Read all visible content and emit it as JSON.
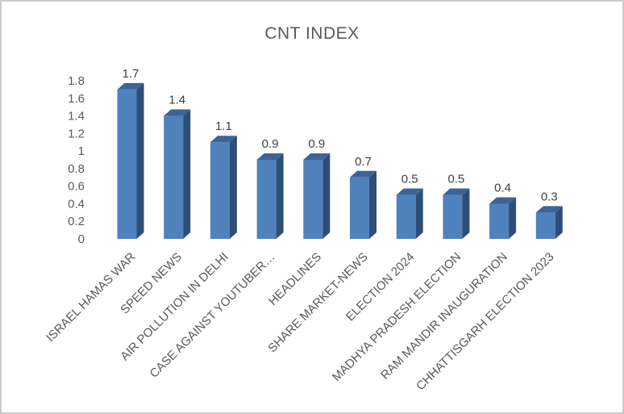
{
  "chart_data": {
    "type": "bar",
    "style": "3d-column",
    "title": "CNT INDEX",
    "categories": [
      "ISRAEL HAMAS WAR",
      "SPEED NEWS",
      "AIR POLLUTION IN DELHI",
      "CASE AGAINST YOUTUBER…",
      "HEADLINES",
      "SHARE MARKET-NEWS",
      "ELECTION 2024",
      "MADHYA PRADESH ELECTION",
      "RAM MANDIR INAUGURATION",
      "CHHATTISGARH ELECTION 2023"
    ],
    "values": [
      1.7,
      1.4,
      1.1,
      0.9,
      0.9,
      0.7,
      0.5,
      0.5,
      0.4,
      0.3
    ],
    "data_labels": [
      "1.7",
      "1.4",
      "1.1",
      "0.9",
      "0.9",
      "0.7",
      "0.5",
      "0.5",
      "0.4",
      "0.3"
    ],
    "xlabel": "",
    "ylabel": "",
    "ylim": [
      0,
      1.8
    ],
    "ytick_step": 0.2,
    "yticks": [
      "1.8",
      "1.6",
      "1.4",
      "1.2",
      "1",
      "0.8",
      "0.6",
      "0.4",
      "0.2",
      "0"
    ],
    "grid": false,
    "legend": "none",
    "x_label_rotation_deg": -45,
    "colors": {
      "bar_front": "#4F81BD",
      "bar_side": "#2F4E77",
      "bar_top": "#3C6498",
      "title_text": "#595959",
      "axis_text": "#595959",
      "data_label_text": "#404040",
      "background": "#FFFFFF",
      "frame_border": "#CBCBCB"
    }
  }
}
